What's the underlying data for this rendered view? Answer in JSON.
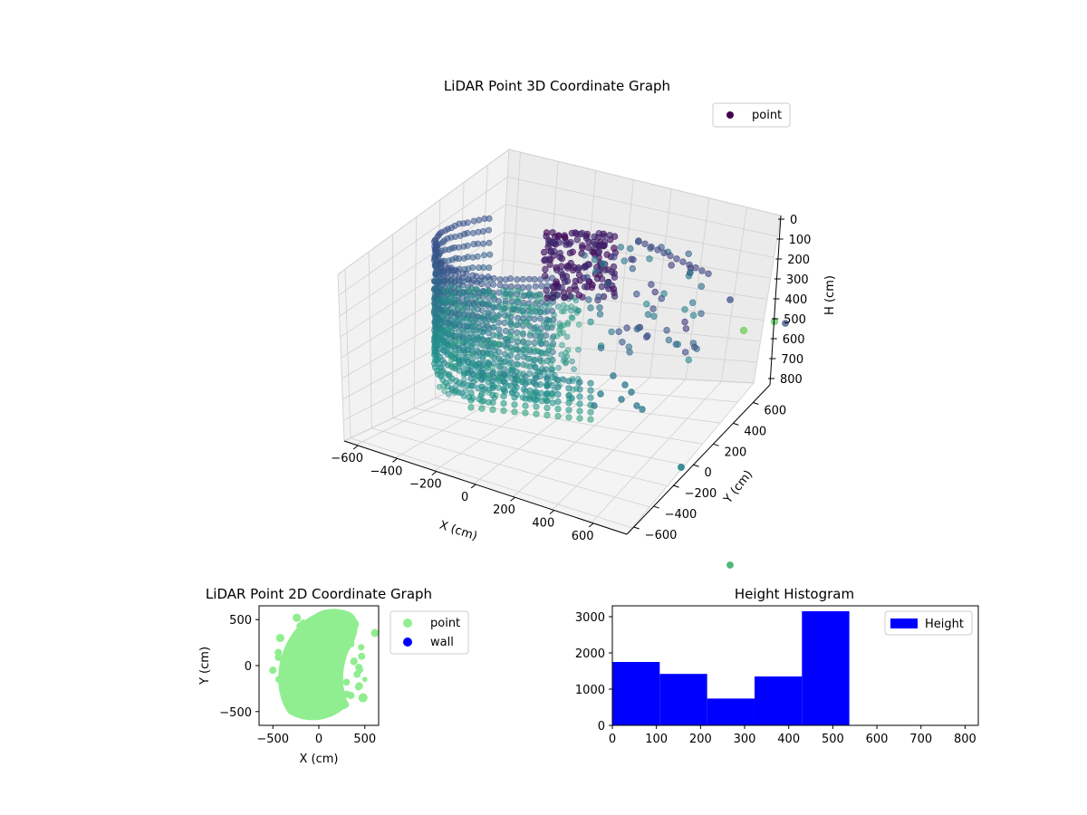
{
  "chart_data": [
    {
      "type": "scatter3d",
      "title": "LiDAR Point 3D Coordinate Graph",
      "xlabel": "X (cm)",
      "ylabel": "Y (cm)",
      "zlabel": "H (cm)",
      "xticks": [
        "−600",
        "−400",
        "−200",
        "0",
        "200",
        "400",
        "600"
      ],
      "yticks": [
        "−600",
        "−400",
        "−200",
        "0",
        "200",
        "400",
        "600"
      ],
      "zticks": [
        "0",
        "100",
        "200",
        "300",
        "400",
        "500",
        "600",
        "700",
        "800"
      ],
      "zlim": [
        0,
        800
      ],
      "z_inverted": true,
      "legend": {
        "entries": [
          {
            "label": "point",
            "color": "#440154"
          }
        ],
        "placement": "top-right"
      },
      "grid": true,
      "colormap": "viridis"
    },
    {
      "type": "scatter",
      "title": "LiDAR Point 2D Coordinate Graph",
      "xlabel": "X (cm)",
      "ylabel": "Y (cm)",
      "xticks": [
        -500,
        0,
        500
      ],
      "yticks": [
        -500,
        0,
        500
      ],
      "xlim": [
        -650,
        650
      ],
      "ylim": [
        -650,
        650
      ],
      "series": [
        {
          "name": "point",
          "color": "#90ee90"
        },
        {
          "name": "wall",
          "color": "#0000ff"
        }
      ],
      "legend_placement": "outside-right"
    },
    {
      "type": "bar",
      "title": "Height Histogram",
      "xticks": [
        0,
        100,
        200,
        300,
        400,
        500,
        600,
        700,
        800
      ],
      "yticks": [
        0,
        1000,
        2000,
        3000
      ],
      "xlim": [
        0,
        830
      ],
      "ylim": [
        0,
        3300
      ],
      "bins": [
        {
          "start": 0,
          "end": 107.5,
          "count": 1750
        },
        {
          "start": 107.5,
          "end": 215,
          "count": 1420
        },
        {
          "start": 215,
          "end": 322.5,
          "count": 740
        },
        {
          "start": 322.5,
          "end": 430,
          "count": 1350
        },
        {
          "start": 430,
          "end": 537.5,
          "count": 3150
        }
      ],
      "series": [
        {
          "name": "Height",
          "color": "#0000ff"
        }
      ],
      "legend_placement": "top-right"
    }
  ]
}
